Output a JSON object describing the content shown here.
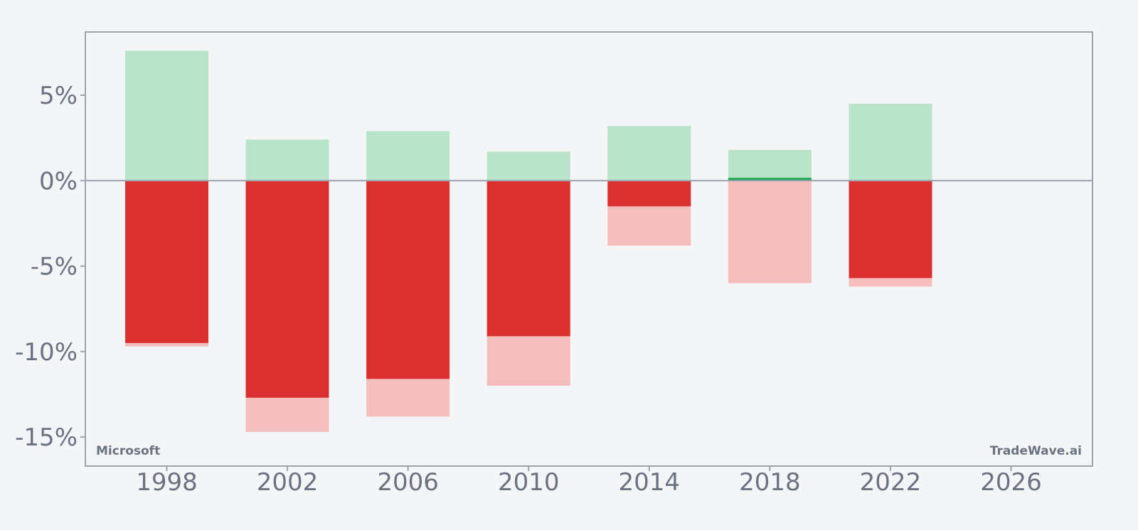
{
  "chart_data": {
    "type": "bar",
    "x": [
      1998,
      2002,
      2006,
      2010,
      2014,
      2018,
      2022
    ],
    "series": [
      {
        "values": [
          7.6,
          2.4,
          2.9,
          1.7,
          3.2,
          1.8,
          4.5
        ]
      },
      {
        "values": [
          0,
          0,
          0,
          0,
          0,
          0.15,
          0
        ]
      },
      {
        "values": [
          -9.7,
          -14.7,
          -13.8,
          -12.0,
          -3.8,
          -6.0,
          -6.2
        ]
      },
      {
        "values": [
          -9.5,
          -12.7,
          -11.6,
          -9.1,
          -1.5,
          0,
          -5.7
        ]
      }
    ],
    "xticks": [
      "1998",
      "2002",
      "2006",
      "2010",
      "2014",
      "2018",
      "2022",
      "2026"
    ],
    "yticks": [
      "5%",
      "0%",
      "-5%",
      "-10%",
      "-15%"
    ],
    "xlim": [
      1995.3,
      2028.7
    ],
    "ylim": [
      -16.7,
      8.7
    ],
    "grid": false,
    "colors": {
      "series_0": "#b9e4c9",
      "series_1": "#22a355",
      "series_2": "#f4bebe",
      "series_3": "#dc2f2f",
      "axis": "#9ca3af",
      "text": "#6b7280",
      "background": "#f4f5f7"
    }
  },
  "labels": {
    "company": "Microsoft",
    "brand": "TradeWave.ai"
  }
}
